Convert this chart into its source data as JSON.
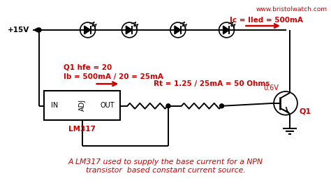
{
  "title": "A LM317 used to supply the base current for a NPN\ntransistor  based constant current source.",
  "watermark": "www.bristolwatch.com",
  "bg_color": "#ffffff",
  "line_color": "#000000",
  "red_color": "#cc0000",
  "voltage_label": "+15V",
  "q1_hfe_text": "Q1 hfe = 20",
  "ib_text": "Ib = 500mA / 20 = 25mA",
  "ic_text": "Ic = Iled = 500mA",
  "rt_text": "Rt = 1.25 / 25mA = 50 Ohms",
  "vbe_text": "0.6V",
  "q1_text": "Q1",
  "lm317_text": "LM317",
  "in_text": "IN",
  "out_text": "OUT",
  "adj_text": "ADJ",
  "figsize": [
    4.74,
    2.65
  ],
  "dpi": 100
}
